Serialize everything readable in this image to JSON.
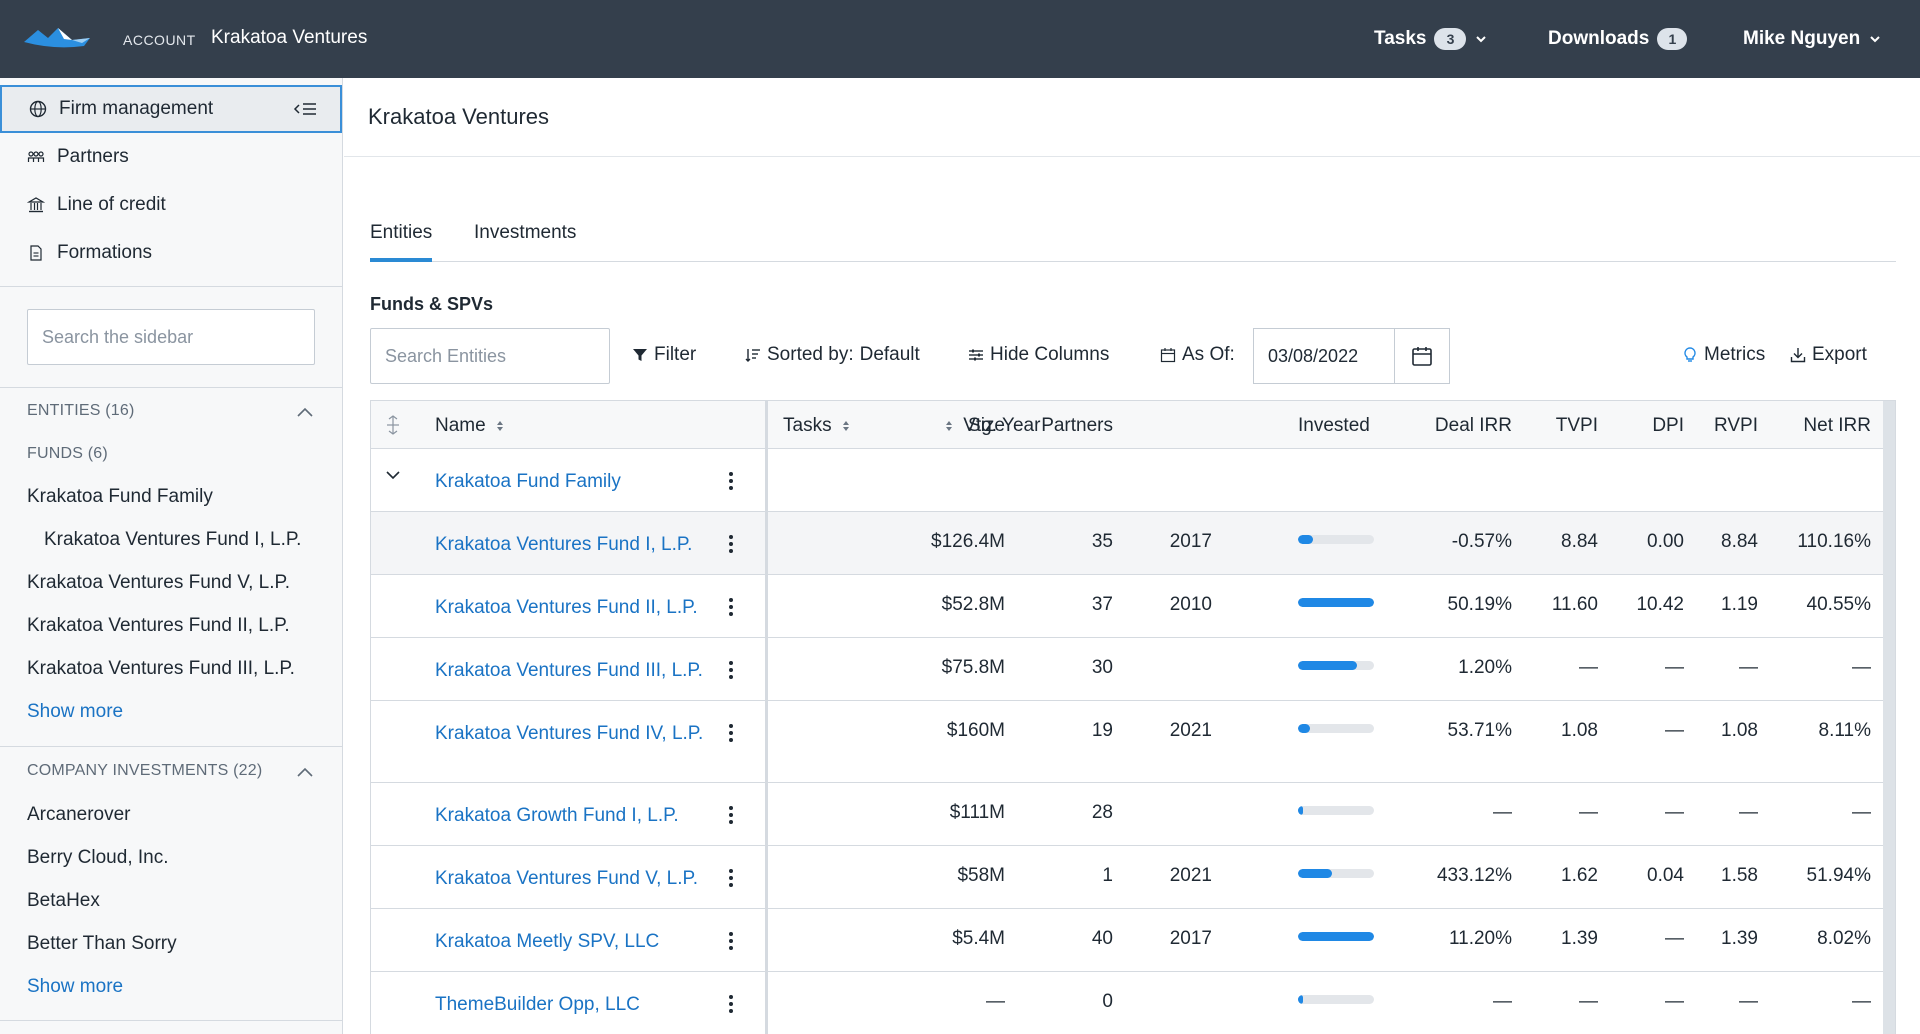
{
  "header": {
    "account_label": "ACCOUNT",
    "account_name": "Krakatoa Ventures",
    "tasks_label": "Tasks",
    "tasks_count": "3",
    "downloads_label": "Downloads",
    "downloads_count": "1",
    "user_name": "Mike Nguyen"
  },
  "sidebar": {
    "nav": [
      {
        "label": "Firm management",
        "icon": "globe-icon"
      },
      {
        "label": "Partners",
        "icon": "people-icon"
      },
      {
        "label": "Line of credit",
        "icon": "bank-icon"
      },
      {
        "label": "Formations",
        "icon": "document-icon"
      }
    ],
    "search_placeholder": "Search the sidebar",
    "entities_heading": "ENTITIES (16)",
    "funds_heading": "FUNDS (6)",
    "funds": [
      "Krakatoa Fund Family",
      "Krakatoa Ventures Fund I, L.P.",
      "Krakatoa Ventures Fund V, L.P.",
      "Krakatoa Ventures Fund II, L.P.",
      "Krakatoa Ventures Fund III, L.P."
    ],
    "show_more": "Show more",
    "company_heading": "COMPANY INVESTMENTS (22)",
    "companies": [
      "Arcanerover",
      "Berry Cloud, Inc.",
      "BetaHex",
      "Better Than Sorry"
    ],
    "show_more_2": "Show more"
  },
  "main": {
    "title": "Krakatoa Ventures",
    "tabs": [
      {
        "label": "Entities"
      },
      {
        "label": "Investments"
      }
    ],
    "section_title": "Funds & SPVs",
    "toolbar": {
      "search_placeholder": "Search Entities",
      "filter": "Filter",
      "sorted_label": "Sorted by:",
      "sorted_value": "Default",
      "hide_columns": "Hide Columns",
      "as_of_label": "As Of:",
      "as_of_date": "03/08/2022",
      "metrics": "Metrics",
      "export": "Export"
    }
  },
  "table": {
    "columns": {
      "name": "Name",
      "tasks": "Tasks",
      "vtg_year": "Vtg. Year",
      "size": "Size",
      "partners": "Partners",
      "invested": "Invested",
      "deal_irr": "Deal IRR",
      "tvpi": "TVPI",
      "dpi": "DPI",
      "rvpi": "RVPI",
      "net_irr": "Net IRR"
    },
    "rows": [
      {
        "name": "Krakatoa Fund Family",
        "group": true
      },
      {
        "name": "Krakatoa Ventures Fund I, L.P.",
        "vtg_year": "2017",
        "size": "$126.4M",
        "partners": "35",
        "invested": 0.2,
        "deal_irr": "-0.57%",
        "tvpi": "8.84",
        "dpi": "0.00",
        "rvpi": "8.84",
        "net_irr": "110.16%",
        "highlight": true
      },
      {
        "name": "Krakatoa Ventures Fund II, L.P.",
        "vtg_year": "2010",
        "size": "$52.8M",
        "partners": "37",
        "invested": 1.0,
        "deal_irr": "50.19%",
        "tvpi": "11.60",
        "dpi": "10.42",
        "rvpi": "1.19",
        "net_irr": "40.55%"
      },
      {
        "name": "Krakatoa Ventures Fund III, L.P.",
        "vtg_year": "",
        "size": "$75.8M",
        "partners": "30",
        "invested": 0.78,
        "deal_irr": "1.20%",
        "tvpi": "—",
        "dpi": "—",
        "rvpi": "—",
        "net_irr": "—"
      },
      {
        "name": "Krakatoa Ventures Fund IV, L.P.",
        "vtg_year": "2021",
        "size": "$160M",
        "partners": "19",
        "invested": 0.16,
        "deal_irr": "53.71%",
        "tvpi": "1.08",
        "dpi": "—",
        "rvpi": "1.08",
        "net_irr": "8.11%",
        "tall": true
      },
      {
        "name": "Krakatoa Growth Fund I, L.P.",
        "vtg_year": "",
        "size": "$111M",
        "partners": "28",
        "invested": 0.06,
        "deal_irr": "—",
        "tvpi": "—",
        "dpi": "—",
        "rvpi": "—",
        "net_irr": "—"
      },
      {
        "name": "Krakatoa Ventures Fund V, L.P.",
        "vtg_year": "2021",
        "size": "$58M",
        "partners": "1",
        "invested": 0.45,
        "deal_irr": "433.12%",
        "tvpi": "1.62",
        "dpi": "0.04",
        "rvpi": "1.58",
        "net_irr": "51.94%"
      },
      {
        "name": "Krakatoa Meetly SPV, LLC",
        "vtg_year": "2017",
        "size": "$5.4M",
        "partners": "40",
        "invested": 1.0,
        "deal_irr": "11.20%",
        "tvpi": "1.39",
        "dpi": "—",
        "rvpi": "1.39",
        "net_irr": "8.02%"
      },
      {
        "name": "ThemeBuilder Opp, LLC",
        "vtg_year": "",
        "size": "—",
        "partners": "0",
        "invested": 0.06,
        "deal_irr": "—",
        "tvpi": "—",
        "dpi": "—",
        "rvpi": "—",
        "net_irr": "—"
      }
    ]
  },
  "colors": {
    "topbar": "#343f4c",
    "link": "#1a73c4",
    "accent": "#1f88e5"
  }
}
